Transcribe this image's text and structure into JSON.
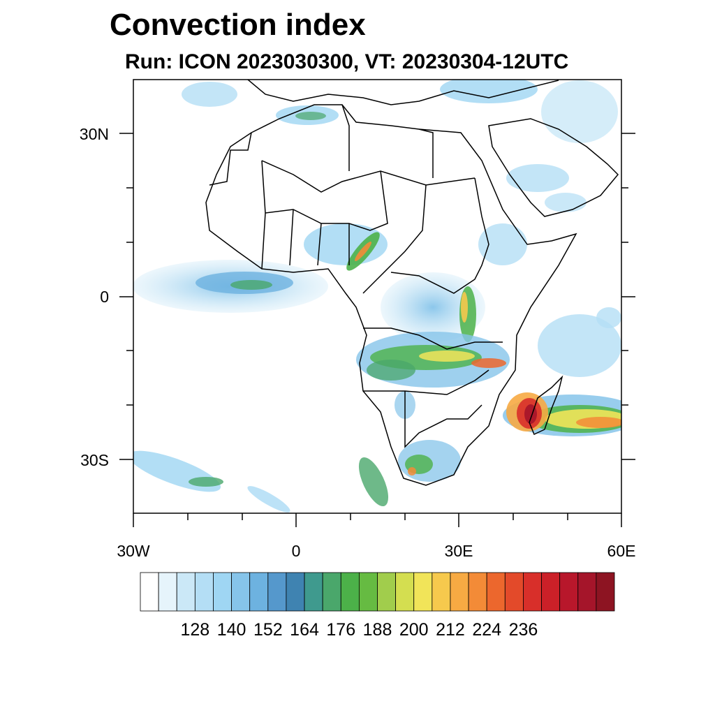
{
  "title": "Convection index",
  "subtitle": "Run: ICON 2023030300,  VT: 20230304-12UTC",
  "map": {
    "lon_range": [
      -30,
      60
    ],
    "lat_range": [
      -40,
      40
    ],
    "lat_ticks": [
      "30N",
      "0",
      "30S"
    ],
    "lon_ticks": [
      "30W",
      "0",
      "30E",
      "60E"
    ]
  },
  "colorbar": {
    "labels": [
      "128",
      "140",
      "152",
      "164",
      "176",
      "188",
      "200",
      "212",
      "224",
      "236"
    ],
    "colors": [
      "#ffffff",
      "#e6f4fb",
      "#cbe8f7",
      "#b4def5",
      "#9fd6f3",
      "#86c4ea",
      "#6db2e0",
      "#5598cc",
      "#3f83b1",
      "#3f9a8e",
      "#4aa76b",
      "#4cb149",
      "#66bb42",
      "#a1cd4c",
      "#d4de50",
      "#f1e459",
      "#f6c94d",
      "#f7aa43",
      "#f38b37",
      "#ec672d",
      "#e34a2a",
      "#d82f2a",
      "#cb2028",
      "#b8172b",
      "#a5152a",
      "#8d1422"
    ]
  }
}
